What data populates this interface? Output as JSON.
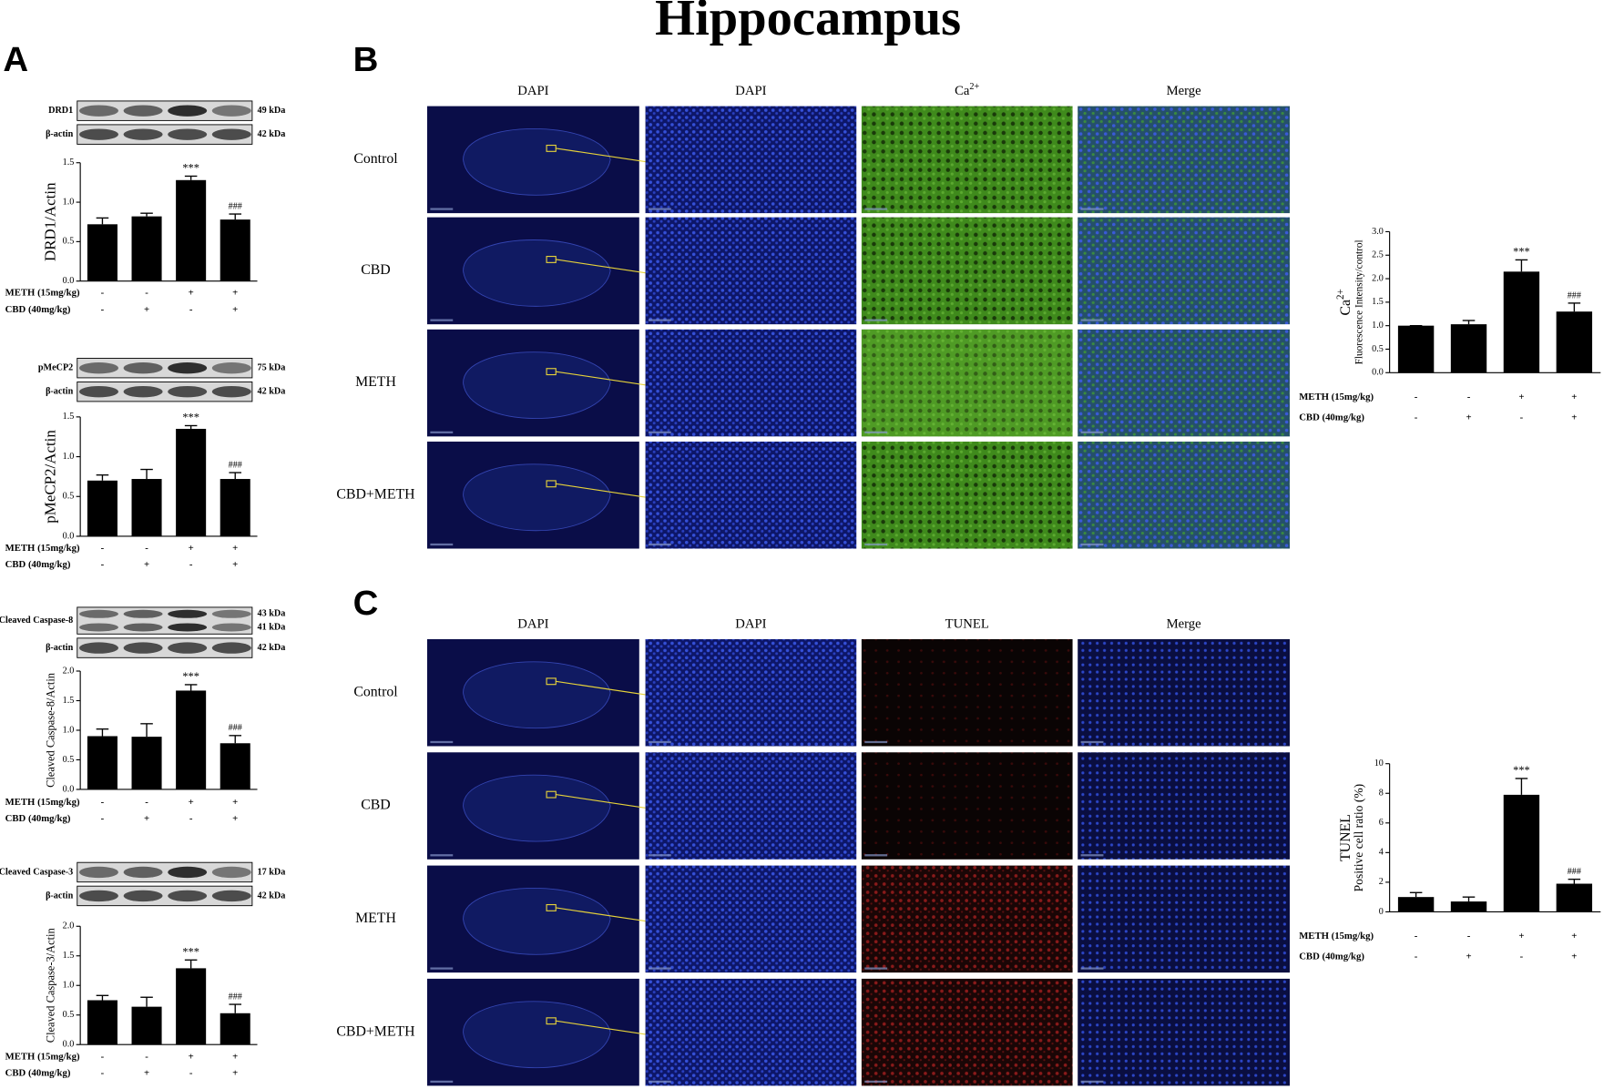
{
  "title": "Hippocampus",
  "panel_labels": [
    "A",
    "B",
    "C"
  ],
  "chart_data": [
    {
      "type": "bar",
      "color": "#000000",
      "blots": [
        {
          "label": "DRD1",
          "kda": [
            "49 kDa"
          ]
        },
        {
          "label": "β-actin",
          "kda": [
            "42 kDa"
          ]
        }
      ],
      "ylabel": "DRD1/Actin",
      "ylim": [
        0,
        1.5
      ],
      "yticks": [
        {
          "value": 0,
          "label": "0.0"
        },
        0.5,
        {
          "value": 1,
          "label": "1.0"
        },
        1.5
      ],
      "values": [
        0.72,
        0.82,
        1.28,
        0.78
      ],
      "errors": [
        0.08,
        0.04,
        0.05,
        0.07
      ],
      "value_annotations": [
        null,
        null,
        "***",
        "###"
      ],
      "conditions": [
        {
          "label": "METH (15mg/kg)",
          "signs": [
            "-",
            "-",
            "+",
            "+"
          ]
        },
        {
          "label": "CBD (40mg/kg)",
          "signs": [
            "-",
            "+",
            "-",
            "+"
          ]
        }
      ]
    },
    {
      "type": "bar",
      "color": "#000000",
      "blots": [
        {
          "label": "pMeCP2",
          "kda": [
            "75 kDa"
          ]
        },
        {
          "label": "β-actin",
          "kda": [
            "42 kDa"
          ]
        }
      ],
      "ylabel": "pMeCP2/Actin",
      "ylim": [
        0,
        1.5
      ],
      "yticks": [
        {
          "value": 0,
          "label": "0.0"
        },
        0.5,
        {
          "value": 1,
          "label": "1.0"
        },
        1.5
      ],
      "values": [
        0.7,
        0.72,
        1.35,
        0.72
      ],
      "errors": [
        0.07,
        0.12,
        0.04,
        0.08
      ],
      "value_annotations": [
        null,
        null,
        "***",
        "###"
      ],
      "conditions": [
        {
          "label": "METH (15mg/kg)",
          "signs": [
            "-",
            "-",
            "+",
            "+"
          ]
        },
        {
          "label": "CBD (40mg/kg)",
          "signs": [
            "-",
            "+",
            "-",
            "+"
          ]
        }
      ]
    },
    {
      "type": "bar",
      "color": "#000000",
      "blots": [
        {
          "label": "Cleaved Caspase-8",
          "kda": [
            "43 kDa",
            "41 kDa"
          ]
        },
        {
          "label": "β-actin",
          "kda": [
            "42 kDa"
          ]
        }
      ],
      "ylabel": "Cleaved Caspase-8/Actin",
      "ylim": [
        0,
        2
      ],
      "yticks": [
        {
          "value": 0,
          "label": "0.0"
        },
        0.5,
        {
          "value": 1,
          "label": "1.0"
        },
        1.5,
        {
          "value": 2,
          "label": "2.0"
        }
      ],
      "values": [
        0.9,
        0.89,
        1.67,
        0.78
      ],
      "errors": [
        0.12,
        0.22,
        0.1,
        0.13
      ],
      "value_annotations": [
        null,
        null,
        "***",
        "###"
      ],
      "conditions": [
        {
          "label": "METH (15mg/kg)",
          "signs": [
            "-",
            "-",
            "+",
            "+"
          ]
        },
        {
          "label": "CBD (40mg/kg)",
          "signs": [
            "-",
            "+",
            "-",
            "+"
          ]
        }
      ]
    },
    {
      "type": "bar",
      "color": "#000000",
      "blots": [
        {
          "label": "Cleaved Caspase-3",
          "kda": [
            "17 kDa"
          ]
        },
        {
          "label": "β-actin",
          "kda": [
            "42 kDa"
          ]
        }
      ],
      "ylabel": "Cleaved Caspase-3/Actin",
      "ylim": [
        0,
        2
      ],
      "yticks": [
        {
          "value": 0,
          "label": "0.0"
        },
        0.5,
        {
          "value": 1,
          "label": "1.0"
        },
        1.5,
        {
          "value": 2,
          "label": "2.0"
        }
      ],
      "values": [
        0.75,
        0.64,
        1.29,
        0.53
      ],
      "errors": [
        0.08,
        0.16,
        0.14,
        0.15
      ],
      "value_annotations": [
        null,
        null,
        "***",
        "###"
      ],
      "conditions": [
        {
          "label": "METH (15mg/kg)",
          "signs": [
            "-",
            "-",
            "+",
            "+"
          ]
        },
        {
          "label": "CBD (40mg/kg)",
          "signs": [
            "-",
            "+",
            "-",
            "+"
          ]
        }
      ]
    },
    {
      "type": "bar",
      "color": "#000000",
      "ylabel_title": {
        "base": "Ca",
        "sup": "2+"
      },
      "ylabel": "Fluorescence Intensity/control",
      "ylim": [
        0,
        3
      ],
      "yticks": [
        {
          "value": 0,
          "label": "0.0"
        },
        0.5,
        {
          "value": 1,
          "label": "1.0"
        },
        1.5,
        {
          "value": 2,
          "label": "2.0"
        },
        2.5,
        {
          "value": 3,
          "label": "3.0"
        }
      ],
      "values": [
        1.0,
        1.03,
        2.15,
        1.3
      ],
      "errors": [
        0,
        0.08,
        0.25,
        0.18
      ],
      "value_annotations": [
        null,
        null,
        "***",
        "###"
      ],
      "conditions": [
        {
          "label": "METH (15mg/kg)",
          "signs": [
            "-",
            "-",
            "+",
            "+"
          ]
        },
        {
          "label": "CBD (40mg/kg)",
          "signs": [
            "-",
            "+",
            "-",
            "+"
          ]
        }
      ]
    },
    {
      "type": "bar",
      "color": "#000000",
      "ylabel_title": "TUNEL",
      "ylabel": "Positive cell ratio (%)",
      "ylim": [
        0,
        10
      ],
      "yticks": [
        0,
        2,
        4,
        6,
        8,
        10
      ],
      "values": [
        1.0,
        0.7,
        7.9,
        1.9
      ],
      "errors": [
        0.3,
        0.3,
        1.1,
        0.3
      ],
      "value_annotations": [
        null,
        null,
        "***",
        "###"
      ],
      "conditions": [
        {
          "label": "METH (15mg/kg)",
          "signs": [
            "-",
            "-",
            "+",
            "+"
          ]
        },
        {
          "label": "CBD (40mg/kg)",
          "signs": [
            "-",
            "+",
            "-",
            "+"
          ]
        }
      ]
    }
  ],
  "micrographs": [
    {
      "columns": [
        "DAPI",
        "DAPI",
        {
          "base": "Ca",
          "sup": "2+"
        },
        "Merge"
      ],
      "rows": [
        "Control",
        "CBD",
        "METH",
        "CBD+METH"
      ]
    },
    {
      "columns": [
        "DAPI",
        "DAPI",
        "TUNEL",
        "Merge"
      ],
      "rows": [
        "Control",
        "CBD",
        "METH",
        "CBD+METH"
      ]
    }
  ]
}
